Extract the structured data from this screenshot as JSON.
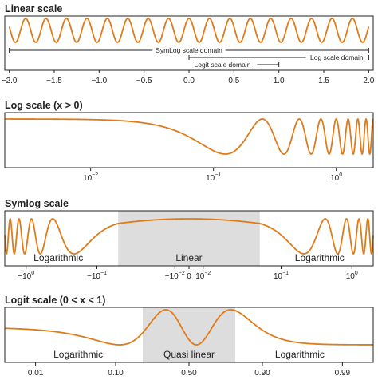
{
  "style": {
    "line_color": "#e07b1a",
    "shade_color": "#dddddd",
    "axis_color": "#222222"
  },
  "chart_data": [
    {
      "type": "line",
      "title": "Linear scale",
      "xscale": "linear",
      "xlim": [
        -2.05,
        2.05
      ],
      "ticks": [
        {
          "v": -2.0,
          "label": "−2.0"
        },
        {
          "v": -1.5,
          "label": "−1.5"
        },
        {
          "v": -1.0,
          "label": "−1.0"
        },
        {
          "v": -0.5,
          "label": "−0.5"
        },
        {
          "v": 0.0,
          "label": "0.0"
        },
        {
          "v": 0.5,
          "label": "0.5"
        },
        {
          "v": 1.0,
          "label": "1.0"
        },
        {
          "v": 1.5,
          "label": "1.5"
        },
        {
          "v": 2.0,
          "label": "2.0"
        }
      ],
      "domains": [
        {
          "label": "SymLog scale domain",
          "from": -2.0,
          "to": 2.0,
          "row": 0
        },
        {
          "label": "Log scale domain",
          "from": 0.0,
          "to": 2.0,
          "row": 1
        },
        {
          "label": "Logit scale domain",
          "from": 0.0,
          "to": 1.0,
          "row": 2
        }
      ]
    },
    {
      "type": "line",
      "title": "Log scale (x > 0)",
      "xscale": "log",
      "xlim": [
        0.002,
        2.0
      ],
      "ticks": [
        {
          "v": 0.01,
          "label": "10",
          "sup": "−2"
        },
        {
          "v": 0.1,
          "label": "10",
          "sup": "−1"
        },
        {
          "v": 1.0,
          "label": "10",
          "sup": "0"
        }
      ]
    },
    {
      "type": "line",
      "title": "Symlog scale",
      "xscale": "symlog",
      "linthresh": 0.05,
      "xlim": [
        -2.0,
        2.0
      ],
      "shaded": [
        -0.05,
        0.05
      ],
      "ticks": [
        {
          "v": -1.0,
          "label": "−10",
          "sup": "0"
        },
        {
          "v": -0.1,
          "label": "−10",
          "sup": "−1"
        },
        {
          "v": -0.01,
          "label": "−10",
          "sup": "−2"
        },
        {
          "v": 0.0,
          "label": "0"
        },
        {
          "v": 0.01,
          "label": "10",
          "sup": "−2"
        },
        {
          "v": 0.1,
          "label": "10",
          "sup": "−1"
        },
        {
          "v": 1.0,
          "label": "10",
          "sup": "0"
        }
      ],
      "regions": [
        {
          "label": "Logarithmic",
          "at": -0.35
        },
        {
          "label": "Linear",
          "at": 0.0
        },
        {
          "label": "Logarithmic",
          "at": 0.35
        }
      ]
    },
    {
      "type": "line",
      "title": "Logit scale (0 < x < 1)",
      "xscale": "logit",
      "xlim": [
        0.004,
        0.996
      ],
      "shaded": [
        0.2,
        0.8
      ],
      "ticks": [
        {
          "v": 0.01,
          "label": "0.01"
        },
        {
          "v": 0.1,
          "label": "0.10"
        },
        {
          "v": 0.5,
          "label": "0.50"
        },
        {
          "v": 0.9,
          "label": "0.90"
        },
        {
          "v": 0.99,
          "label": "0.99"
        }
      ],
      "regions": [
        {
          "label": "Logarithmic",
          "at": 0.035
        },
        {
          "label": "Quasi linear",
          "at": 0.5
        },
        {
          "label": "Logarithmic",
          "at": 0.965
        }
      ]
    }
  ]
}
